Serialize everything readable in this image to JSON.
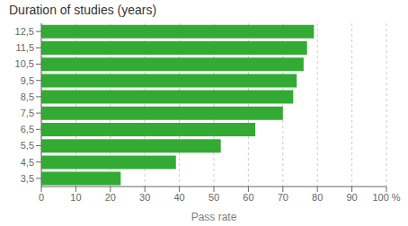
{
  "chart_data": {
    "type": "bar",
    "orientation": "horizontal",
    "title": "Duration of studies (years)",
    "xlabel": "Pass rate",
    "categories": [
      "3,5",
      "4,5",
      "5,5",
      "6,5",
      "7,5",
      "8,5",
      "9,5",
      "10,5",
      "11,5",
      "12,5"
    ],
    "values": [
      23,
      39,
      52,
      62,
      70,
      73,
      74,
      76,
      77,
      79
    ],
    "color": "#33aa33",
    "xlim": [
      0,
      100
    ],
    "xticks": [
      0,
      10,
      20,
      30,
      40,
      50,
      60,
      70,
      80,
      90,
      {
        "value": 100,
        "label": "100 %"
      }
    ],
    "grid": true
  }
}
